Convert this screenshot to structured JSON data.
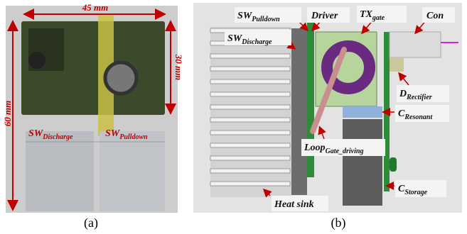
{
  "panel_a": {
    "caption": "(a)",
    "dimensions": [
      "45 mm",
      "60 mm",
      "30 mm"
    ],
    "labels": [
      {
        "main": "SW",
        "sub": "Discharge"
      },
      {
        "main": "SW",
        "sub": "Pulldown"
      }
    ]
  },
  "panel_b": {
    "caption": "(b)",
    "labels": [
      {
        "main": "SW",
        "sub": "Pulldown"
      },
      {
        "main": "Driver"
      },
      {
        "main": "TX",
        "sub": "gate"
      },
      {
        "main": "Con"
      },
      {
        "main": "SW",
        "sub": "Discharge"
      },
      {
        "main": "D",
        "sub": "Rectifier"
      },
      {
        "main": "C",
        "sub": "Resonant"
      },
      {
        "main": "Loop",
        "sub": "Gate_driving"
      },
      {
        "main": "C",
        "sub": "Storage"
      },
      {
        "main": "Heat sink"
      }
    ]
  }
}
